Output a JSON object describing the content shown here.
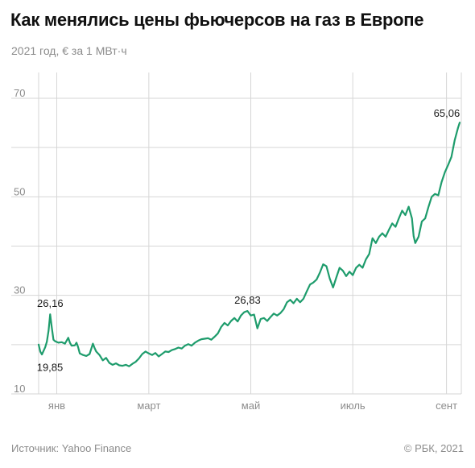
{
  "header": {
    "title": "Как менялись цены фьючерсов на газ в Европе",
    "subtitle": "2021 год, € за 1 МВт·ч"
  },
  "footer": {
    "source": "Источник: Yahoo Finance",
    "copyright": "© РБК, 2021"
  },
  "colors": {
    "line": "#1e9c6c",
    "grid": "#d6d6d6",
    "axis_text": "#8c8c8c"
  },
  "chart_data": {
    "type": "line",
    "title": "Как менялись цены фьючерсов на газ в Европе",
    "subtitle": "2021 год, € за 1 МВт·ч",
    "ylim": [
      10,
      70
    ],
    "yticks": [
      10,
      30,
      50,
      70
    ],
    "xlim": [
      1,
      258
    ],
    "x_tick_labels": [
      {
        "label": "янв",
        "x": 12
      },
      {
        "label": "март",
        "x": 68
      },
      {
        "label": "май",
        "x": 130
      },
      {
        "label": "июль",
        "x": 192
      },
      {
        "label": "сент",
        "x": 249
      }
    ],
    "grid": true,
    "series": [
      {
        "points": [
          [
            1,
            20.0
          ],
          [
            2,
            18.6
          ],
          [
            3,
            18.0
          ],
          [
            5,
            19.5
          ],
          [
            6,
            20.6
          ],
          [
            7,
            22.8
          ],
          [
            8,
            26.16
          ],
          [
            9,
            23.5
          ],
          [
            10,
            21.0
          ],
          [
            11,
            20.7
          ],
          [
            13,
            20.4
          ],
          [
            15,
            20.5
          ],
          [
            17,
            20.2
          ],
          [
            19,
            21.4
          ],
          [
            20,
            20.4
          ],
          [
            21,
            19.8
          ],
          [
            23,
            19.85
          ],
          [
            24,
            20.4
          ],
          [
            25,
            19.5
          ],
          [
            26,
            18.2
          ],
          [
            28,
            17.9
          ],
          [
            30,
            17.7
          ],
          [
            32,
            18.1
          ],
          [
            34,
            20.2
          ],
          [
            35,
            19.3
          ],
          [
            36,
            18.6
          ],
          [
            38,
            17.9
          ],
          [
            40,
            16.8
          ],
          [
            42,
            17.3
          ],
          [
            44,
            16.3
          ],
          [
            46,
            15.9
          ],
          [
            48,
            16.2
          ],
          [
            50,
            15.8
          ],
          [
            52,
            15.7
          ],
          [
            54,
            15.9
          ],
          [
            56,
            15.6
          ],
          [
            58,
            16.1
          ],
          [
            60,
            16.5
          ],
          [
            62,
            17.2
          ],
          [
            64,
            18.1
          ],
          [
            66,
            18.6
          ],
          [
            68,
            18.2
          ],
          [
            70,
            17.9
          ],
          [
            72,
            18.3
          ],
          [
            74,
            17.6
          ],
          [
            76,
            18.1
          ],
          [
            78,
            18.6
          ],
          [
            80,
            18.5
          ],
          [
            82,
            18.9
          ],
          [
            84,
            19.1
          ],
          [
            86,
            19.4
          ],
          [
            88,
            19.2
          ],
          [
            90,
            19.8
          ],
          [
            92,
            20.1
          ],
          [
            94,
            19.8
          ],
          [
            96,
            20.4
          ],
          [
            98,
            20.8
          ],
          [
            100,
            21.1
          ],
          [
            102,
            21.2
          ],
          [
            104,
            21.3
          ],
          [
            106,
            21.0
          ],
          [
            108,
            21.6
          ],
          [
            110,
            22.3
          ],
          [
            112,
            23.6
          ],
          [
            114,
            24.4
          ],
          [
            116,
            23.9
          ],
          [
            118,
            24.8
          ],
          [
            120,
            25.4
          ],
          [
            122,
            24.7
          ],
          [
            124,
            25.9
          ],
          [
            126,
            26.6
          ],
          [
            128,
            26.83
          ],
          [
            130,
            25.9
          ],
          [
            132,
            26.1
          ],
          [
            134,
            23.3
          ],
          [
            136,
            25.2
          ],
          [
            138,
            25.4
          ],
          [
            140,
            24.8
          ],
          [
            142,
            25.6
          ],
          [
            144,
            26.3
          ],
          [
            146,
            25.9
          ],
          [
            148,
            26.4
          ],
          [
            150,
            27.2
          ],
          [
            152,
            28.6
          ],
          [
            154,
            29.1
          ],
          [
            156,
            28.4
          ],
          [
            158,
            29.3
          ],
          [
            160,
            28.6
          ],
          [
            162,
            29.3
          ],
          [
            164,
            30.8
          ],
          [
            166,
            32.2
          ],
          [
            168,
            32.6
          ],
          [
            170,
            33.2
          ],
          [
            172,
            34.6
          ],
          [
            174,
            36.3
          ],
          [
            176,
            35.9
          ],
          [
            178,
            33.4
          ],
          [
            180,
            31.6
          ],
          [
            182,
            33.6
          ],
          [
            184,
            35.6
          ],
          [
            186,
            35.0
          ],
          [
            188,
            33.9
          ],
          [
            190,
            34.8
          ],
          [
            192,
            34.1
          ],
          [
            194,
            35.6
          ],
          [
            196,
            36.2
          ],
          [
            198,
            35.6
          ],
          [
            200,
            37.3
          ],
          [
            202,
            38.4
          ],
          [
            204,
            41.6
          ],
          [
            206,
            40.6
          ],
          [
            208,
            41.9
          ],
          [
            210,
            42.6
          ],
          [
            212,
            41.9
          ],
          [
            214,
            43.3
          ],
          [
            216,
            44.6
          ],
          [
            218,
            43.9
          ],
          [
            220,
            45.6
          ],
          [
            222,
            47.2
          ],
          [
            224,
            46.3
          ],
          [
            226,
            48.0
          ],
          [
            228,
            45.6
          ],
          [
            229,
            42.0
          ],
          [
            230,
            40.6
          ],
          [
            232,
            41.9
          ],
          [
            234,
            45.0
          ],
          [
            236,
            45.6
          ],
          [
            238,
            47.9
          ],
          [
            240,
            50.0
          ],
          [
            242,
            50.6
          ],
          [
            244,
            50.3
          ],
          [
            246,
            53.0
          ],
          [
            248,
            55.0
          ],
          [
            250,
            56.5
          ],
          [
            252,
            58.1
          ],
          [
            254,
            61.5
          ],
          [
            256,
            64.0
          ],
          [
            257,
            65.06
          ]
        ]
      }
    ],
    "annotations": [
      {
        "text": "26,16",
        "x": 8,
        "y": 26.16,
        "anchor": "above"
      },
      {
        "text": "19,85",
        "x": 1,
        "y": 18.6,
        "anchor": "below"
      },
      {
        "text": "26,83",
        "x": 128,
        "y": 26.83,
        "anchor": "above"
      },
      {
        "text": "65,06",
        "x": 257,
        "y": 65.06,
        "anchor": "above-left"
      }
    ]
  }
}
